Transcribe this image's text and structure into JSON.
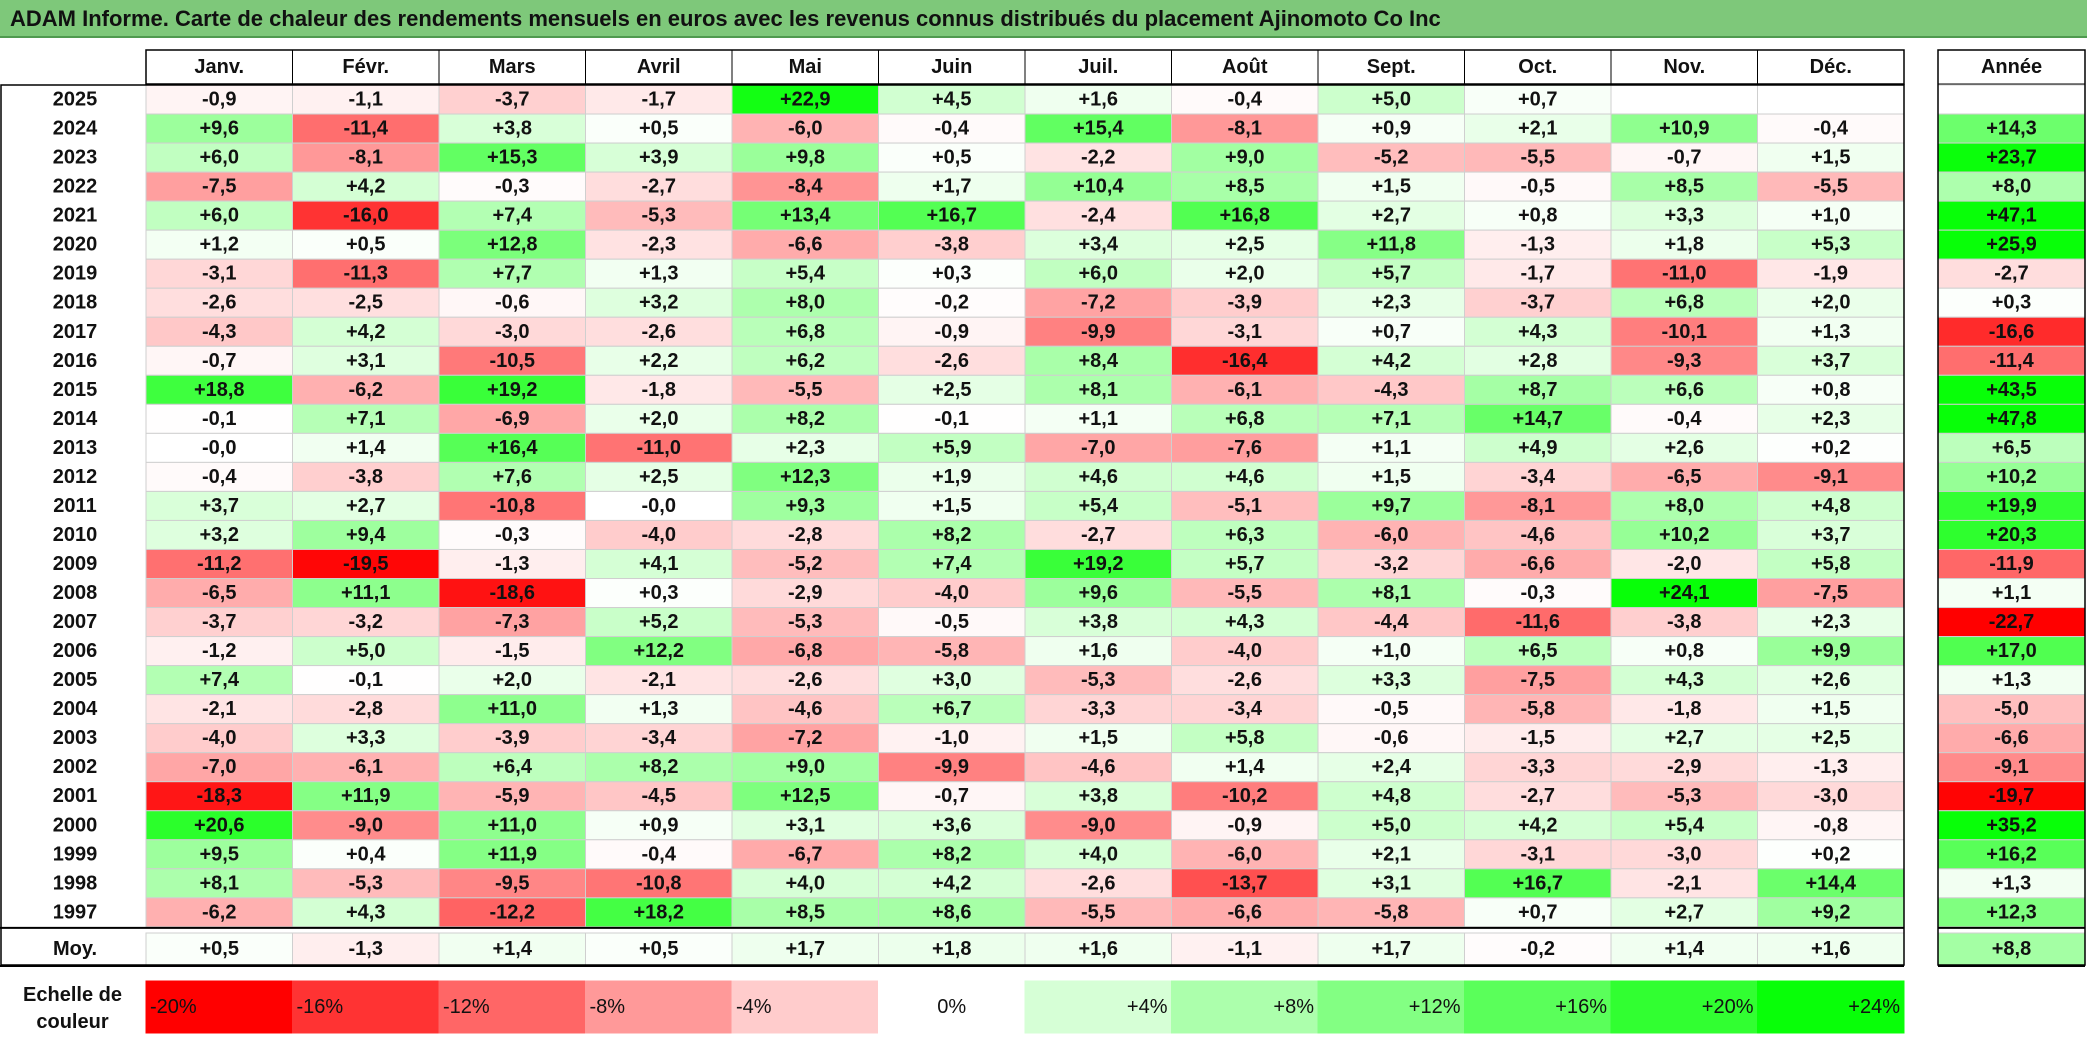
{
  "title": "ADAM Informe. Carte de chaleur des rendements mensuels en euros avec les revenus connus distribués du placement Ajinomoto Co Inc",
  "chart_data": {
    "type": "heatmap",
    "months": [
      "Janv.",
      "Févr.",
      "Mars",
      "Avril",
      "Mai",
      "Juin",
      "Juil.",
      "Août",
      "Sept.",
      "Oct.",
      "Nov.",
      "Déc."
    ],
    "year_header": "Année",
    "avg_label": "Moy.",
    "rows": [
      {
        "year": "2025",
        "values": [
          "-0,9",
          "-1,1",
          "-3,7",
          "-1,7",
          "+22,9",
          "+4,5",
          "+1,6",
          "-0,4",
          "+5,0",
          "+0,7",
          "",
          ""
        ],
        "annual": ""
      },
      {
        "year": "2024",
        "values": [
          "+9,6",
          "-11,4",
          "+3,8",
          "+0,5",
          "-6,0",
          "-0,4",
          "+15,4",
          "-8,1",
          "+0,9",
          "+2,1",
          "+10,9",
          "-0,4"
        ],
        "annual": "+14,3"
      },
      {
        "year": "2023",
        "values": [
          "+6,0",
          "-8,1",
          "+15,3",
          "+3,9",
          "+9,8",
          "+0,5",
          "-2,2",
          "+9,0",
          "-5,2",
          "-5,5",
          "-0,7",
          "+1,5"
        ],
        "annual": "+23,7"
      },
      {
        "year": "2022",
        "values": [
          "-7,5",
          "+4,2",
          "-0,3",
          "-2,7",
          "-8,4",
          "+1,7",
          "+10,4",
          "+8,5",
          "+1,5",
          "-0,5",
          "+8,5",
          "-5,5"
        ],
        "annual": "+8,0"
      },
      {
        "year": "2021",
        "values": [
          "+6,0",
          "-16,0",
          "+7,4",
          "-5,3",
          "+13,4",
          "+16,7",
          "-2,4",
          "+16,8",
          "+2,7",
          "+0,8",
          "+3,3",
          "+1,0"
        ],
        "annual": "+47,1"
      },
      {
        "year": "2020",
        "values": [
          "+1,2",
          "+0,5",
          "+12,8",
          "-2,3",
          "-6,6",
          "-3,8",
          "+3,4",
          "+2,5",
          "+11,8",
          "-1,3",
          "+1,8",
          "+5,3"
        ],
        "annual": "+25,9"
      },
      {
        "year": "2019",
        "values": [
          "-3,1",
          "-11,3",
          "+7,7",
          "+1,3",
          "+5,4",
          "+0,3",
          "+6,0",
          "+2,0",
          "+5,7",
          "-1,7",
          "-11,0",
          "-1,9"
        ],
        "annual": "-2,7"
      },
      {
        "year": "2018",
        "values": [
          "-2,6",
          "-2,5",
          "-0,6",
          "+3,2",
          "+8,0",
          "-0,2",
          "-7,2",
          "-3,9",
          "+2,3",
          "-3,7",
          "+6,8",
          "+2,0"
        ],
        "annual": "+0,3"
      },
      {
        "year": "2017",
        "values": [
          "-4,3",
          "+4,2",
          "-3,0",
          "-2,6",
          "+6,8",
          "-0,9",
          "-9,9",
          "-3,1",
          "+0,7",
          "+4,3",
          "-10,1",
          "+1,3"
        ],
        "annual": "-16,6"
      },
      {
        "year": "2016",
        "values": [
          "-0,7",
          "+3,1",
          "-10,5",
          "+2,2",
          "+6,2",
          "-2,6",
          "+8,4",
          "-16,4",
          "+4,2",
          "+2,8",
          "-9,3",
          "+3,7"
        ],
        "annual": "-11,4"
      },
      {
        "year": "2015",
        "values": [
          "+18,8",
          "-6,2",
          "+19,2",
          "-1,8",
          "-5,5",
          "+2,5",
          "+8,1",
          "-6,1",
          "-4,3",
          "+8,7",
          "+6,6",
          "+0,8"
        ],
        "annual": "+43,5"
      },
      {
        "year": "2014",
        "values": [
          "-0,1",
          "+7,1",
          "-6,9",
          "+2,0",
          "+8,2",
          "-0,1",
          "+1,1",
          "+6,8",
          "+7,1",
          "+14,7",
          "-0,4",
          "+2,3"
        ],
        "annual": "+47,8"
      },
      {
        "year": "2013",
        "values": [
          "-0,0",
          "+1,4",
          "+16,4",
          "-11,0",
          "+2,3",
          "+5,9",
          "-7,0",
          "-7,6",
          "+1,1",
          "+4,9",
          "+2,6",
          "+0,2"
        ],
        "annual": "+6,5"
      },
      {
        "year": "2012",
        "values": [
          "-0,4",
          "-3,8",
          "+7,6",
          "+2,5",
          "+12,3",
          "+1,9",
          "+4,6",
          "+4,6",
          "+1,5",
          "-3,4",
          "-6,5",
          "-9,1"
        ],
        "annual": "+10,2"
      },
      {
        "year": "2011",
        "values": [
          "+3,7",
          "+2,7",
          "-10,8",
          "-0,0",
          "+9,3",
          "+1,5",
          "+5,4",
          "-5,1",
          "+9,7",
          "-8,1",
          "+8,0",
          "+4,8"
        ],
        "annual": "+19,9"
      },
      {
        "year": "2010",
        "values": [
          "+3,2",
          "+9,4",
          "-0,3",
          "-4,0",
          "-2,8",
          "+8,2",
          "-2,7",
          "+6,3",
          "-6,0",
          "-4,6",
          "+10,2",
          "+3,7"
        ],
        "annual": "+20,3"
      },
      {
        "year": "2009",
        "values": [
          "-11,2",
          "-19,5",
          "-1,3",
          "+4,1",
          "-5,2",
          "+7,4",
          "+19,2",
          "+5,7",
          "-3,2",
          "-6,6",
          "-2,0",
          "+5,8"
        ],
        "annual": "-11,9"
      },
      {
        "year": "2008",
        "values": [
          "-6,5",
          "+11,1",
          "-18,6",
          "+0,3",
          "-2,9",
          "-4,0",
          "+9,6",
          "-5,5",
          "+8,1",
          "-0,3",
          "+24,1",
          "-7,5"
        ],
        "annual": "+1,1"
      },
      {
        "year": "2007",
        "values": [
          "-3,7",
          "-3,2",
          "-7,3",
          "+5,2",
          "-5,3",
          "-0,5",
          "+3,8",
          "+4,3",
          "-4,4",
          "-11,6",
          "-3,8",
          "+2,3"
        ],
        "annual": "-22,7"
      },
      {
        "year": "2006",
        "values": [
          "-1,2",
          "+5,0",
          "-1,5",
          "+12,2",
          "-6,8",
          "-5,8",
          "+1,6",
          "-4,0",
          "+1,0",
          "+6,5",
          "+0,8",
          "+9,9"
        ],
        "annual": "+17,0"
      },
      {
        "year": "2005",
        "values": [
          "+7,4",
          "-0,1",
          "+2,0",
          "-2,1",
          "-2,6",
          "+3,0",
          "-5,3",
          "-2,6",
          "+3,3",
          "-7,5",
          "+4,3",
          "+2,6"
        ],
        "annual": "+1,3"
      },
      {
        "year": "2004",
        "values": [
          "-2,1",
          "-2,8",
          "+11,0",
          "+1,3",
          "-4,6",
          "+6,7",
          "-3,3",
          "-3,4",
          "-0,5",
          "-5,8",
          "-1,8",
          "+1,5"
        ],
        "annual": "-5,0"
      },
      {
        "year": "2003",
        "values": [
          "-4,0",
          "+3,3",
          "-3,9",
          "-3,4",
          "-7,2",
          "-1,0",
          "+1,5",
          "+5,8",
          "-0,6",
          "-1,5",
          "+2,7",
          "+2,5"
        ],
        "annual": "-6,6"
      },
      {
        "year": "2002",
        "values": [
          "-7,0",
          "-6,1",
          "+6,4",
          "+8,2",
          "+9,0",
          "-9,9",
          "-4,6",
          "+1,4",
          "+2,4",
          "-3,3",
          "-2,9",
          "-1,3"
        ],
        "annual": "-9,1"
      },
      {
        "year": "2001",
        "values": [
          "-18,3",
          "+11,9",
          "-5,9",
          "-4,5",
          "+12,5",
          "-0,7",
          "+3,8",
          "-10,2",
          "+4,8",
          "-2,7",
          "-5,3",
          "-3,0"
        ],
        "annual": "-19,7"
      },
      {
        "year": "2000",
        "values": [
          "+20,6",
          "-9,0",
          "+11,0",
          "+0,9",
          "+3,1",
          "+3,6",
          "-9,0",
          "-0,9",
          "+5,0",
          "+4,2",
          "+5,4",
          "-0,8"
        ],
        "annual": "+35,2"
      },
      {
        "year": "1999",
        "values": [
          "+9,5",
          "+0,4",
          "+11,9",
          "-0,4",
          "-6,7",
          "+8,2",
          "+4,0",
          "-6,0",
          "+2,1",
          "-3,1",
          "-3,0",
          "+0,2"
        ],
        "annual": "+16,2"
      },
      {
        "year": "1998",
        "values": [
          "+8,1",
          "-5,3",
          "-9,5",
          "-10,8",
          "+4,0",
          "+4,2",
          "-2,6",
          "-13,7",
          "+3,1",
          "+16,7",
          "-2,1",
          "+14,4"
        ],
        "annual": "+1,3"
      },
      {
        "year": "1997",
        "values": [
          "-6,2",
          "+4,3",
          "-12,2",
          "+18,2",
          "+8,5",
          "+8,6",
          "-5,5",
          "-6,6",
          "-5,8",
          "+0,7",
          "+2,7",
          "+9,2"
        ],
        "annual": "+12,3"
      }
    ],
    "averages": [
      "+0,5",
      "-1,3",
      "+1,4",
      "+0,5",
      "+1,7",
      "+1,8",
      "+1,6",
      "-1,1",
      "+1,7",
      "-0,2",
      "+1,4",
      "+1,6"
    ],
    "average_annual": "+8,8",
    "legend_title": "Echelle de couleur",
    "legend": [
      {
        "label": "-20%",
        "value": -20,
        "color": "#ff0000"
      },
      {
        "label": "-16%",
        "value": -16,
        "color": "#ff3333"
      },
      {
        "label": "-12%",
        "value": -12,
        "color": "#ff6666"
      },
      {
        "label": "-8%",
        "value": -8,
        "color": "#ff9999"
      },
      {
        "label": "-4%",
        "value": -4,
        "color": "#ffcccc"
      },
      {
        "label": "0%",
        "value": 0,
        "color": "#ffffff"
      },
      {
        "label": "+4%",
        "value": 4,
        "color": "#d6ffd6"
      },
      {
        "label": "+8%",
        "value": 8,
        "color": "#acffac"
      },
      {
        "label": "+12%",
        "value": 12,
        "color": "#83ff83"
      },
      {
        "label": "+16%",
        "value": 16,
        "color": "#5aff5a"
      },
      {
        "label": "+20%",
        "value": 20,
        "color": "#31ff31"
      },
      {
        "label": "+24%",
        "value": 24,
        "color": "#08ff08"
      }
    ]
  }
}
